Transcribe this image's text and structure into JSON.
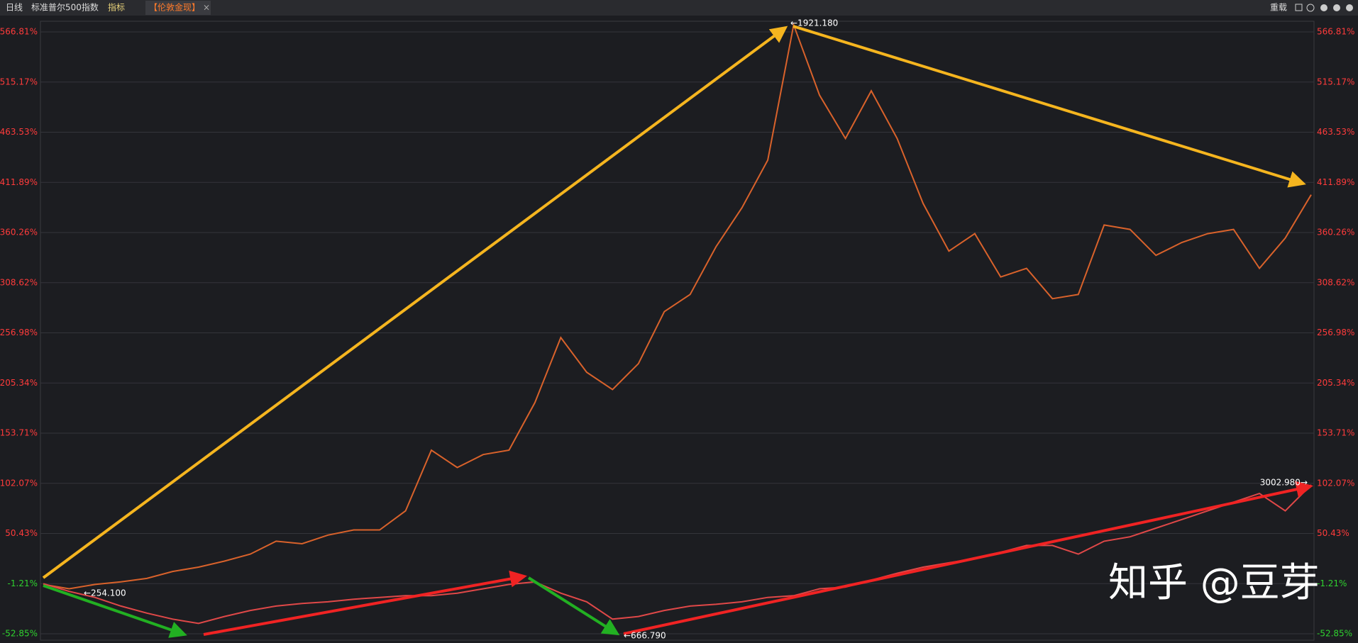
{
  "chart_data": {
    "type": "line",
    "toolbar": {
      "period": "日线",
      "indicator": "指标",
      "close": "×",
      "reload": "重载"
    },
    "series": [
      {
        "name": "【伦敦金现】",
        "color": "#d9622b",
        "values": [
          -2.0,
          -6.5,
          -2.0,
          0.6,
          4.2,
          11.3,
          15.8,
          22.0,
          29.2,
          42.5,
          39.9,
          48.8,
          54.1,
          54.1,
          73.7,
          136.2,
          118.3,
          131.7,
          136.2,
          185.2,
          252.1,
          216.4,
          198.6,
          225.3,
          278.8,
          296.6,
          345.7,
          385.8,
          434.8,
          574.0,
          501.7,
          457.1,
          506.2,
          457.1,
          390.3,
          341.2,
          359.1,
          314.5,
          323.4,
          292.2,
          296.6,
          368.0,
          363.5,
          336.8,
          350.1,
          359.1,
          363.5,
          323.4,
          354.6,
          399.2
        ]
      },
      {
        "name": "标准普尔500指数",
        "color": "#e04848",
        "values": [
          -1.2,
          -9.2,
          -15.4,
          -24.3,
          -31.5,
          -37.7,
          -42.2,
          -35.0,
          -28.8,
          -24.3,
          -21.7,
          -19.9,
          -17.2,
          -15.4,
          -13.6,
          -13.6,
          -11.0,
          -6.5,
          -2.0,
          0.6,
          -11.0,
          -19.9,
          -37.7,
          -35.0,
          -28.8,
          -24.3,
          -22.5,
          -19.9,
          -15.4,
          -13.6,
          -6.5,
          -4.7,
          2.4,
          9.5,
          15.8,
          20.3,
          24.7,
          31.0,
          38.1,
          38.1,
          29.2,
          42.5,
          47.0,
          55.9,
          64.8,
          73.7,
          82.7,
          91.6,
          73.7,
          100.5
        ]
      }
    ],
    "ylim": [
      -59.4,
      577.8
    ],
    "yticks": [
      {
        "value": 566.81,
        "label": "566.81%"
      },
      {
        "value": 515.17,
        "label": "515.17%"
      },
      {
        "value": 463.53,
        "label": "463.53%"
      },
      {
        "value": 411.89,
        "label": "411.89%"
      },
      {
        "value": 360.26,
        "label": "360.26%"
      },
      {
        "value": 308.62,
        "label": "308.62%"
      },
      {
        "value": 256.98,
        "label": "256.98%"
      },
      {
        "value": 205.34,
        "label": "205.34%"
      },
      {
        "value": 153.71,
        "label": "153.71%"
      },
      {
        "value": 102.07,
        "label": "102.07%"
      },
      {
        "value": 50.43,
        "label": "50.43%"
      },
      {
        "value": -1.21,
        "label": "-1.21%"
      },
      {
        "value": -52.85,
        "label": "-52.85%"
      }
    ],
    "grid": true,
    "annotations": [
      "←1921.180",
      "←254.100",
      "3002.980→",
      "←666.790"
    ],
    "watermark": "知乎 @豆芽"
  }
}
